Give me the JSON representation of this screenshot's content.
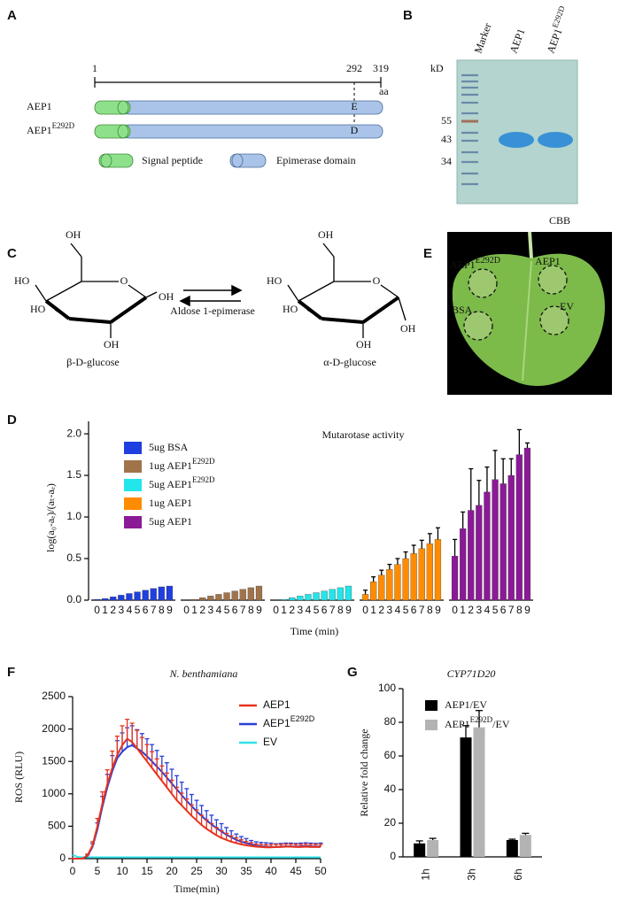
{
  "panel_labels": [
    "A",
    "B",
    "C",
    "D",
    "E",
    "F",
    "G"
  ],
  "panel_a": {
    "scale_start": "1",
    "scale_mark": "292",
    "scale_end": "319",
    "unit": "aa",
    "rows": [
      {
        "name": "AEP1",
        "residue": "E"
      },
      {
        "name": "AEP1",
        "superscript": "E292D",
        "residue": "D"
      }
    ],
    "legend": [
      "Signal peptide",
      "Epimerase domain"
    ]
  },
  "panel_b": {
    "lanes": [
      {
        "name": "Marker"
      },
      {
        "name": "AEP1"
      },
      {
        "name": "AEP1",
        "superscript": "E292D"
      }
    ],
    "unit": "kD",
    "markers": [
      "55",
      "43",
      "34"
    ],
    "stain": "CBB"
  },
  "panel_c": {
    "left": "β-D-glucose",
    "right": "α-D-glucose",
    "enzyme": "Aldose 1-epimerase",
    "hydroxyl": "OH",
    "hydroxyl_left": "HO",
    "ring_oxygen": "O"
  },
  "panel_e": {
    "spots": [
      {
        "name": "AEP1",
        "superscript": "E292D"
      },
      {
        "name": "AEP1"
      },
      {
        "name": "BSA"
      },
      {
        "name": "EV"
      }
    ]
  },
  "chart_data": [
    {
      "type": "bar",
      "title": "Mutarotase activity",
      "x_label": "Time (min)",
      "y_label": "log(a₀-aₑ)/(aₜ-aₑ)",
      "categories": [
        "0",
        "1",
        "2",
        "3",
        "4",
        "5",
        "6",
        "7",
        "8",
        "9"
      ],
      "ylim": [
        0,
        2.15
      ],
      "yticks": [
        {
          "value": 0,
          "label": "0.0"
        },
        {
          "value": 0.5,
          "label": "0.5"
        },
        {
          "value": 1,
          "label": "1.0"
        },
        {
          "value": 1.5,
          "label": "1.5"
        },
        {
          "value": 2,
          "label": "2.0"
        }
      ],
      "series": [
        {
          "name": "5ug BSA",
          "color": "#1f3fe0",
          "values": [
            0.01,
            0.02,
            0.04,
            0.06,
            0.08,
            0.1,
            0.12,
            0.14,
            0.16,
            0.17
          ]
        },
        {
          "name": "1ug AEP1",
          "superscript": "E292D",
          "color": "#a0734a",
          "values": [
            0,
            0.01,
            0.03,
            0.05,
            0.07,
            0.09,
            0.11,
            0.13,
            0.15,
            0.17
          ]
        },
        {
          "name": "5ug AEP1",
          "superscript": "E292D",
          "color": "#22e6ea",
          "values": [
            0,
            0.01,
            0.03,
            0.05,
            0.07,
            0.09,
            0.11,
            0.13,
            0.15,
            0.17
          ]
        },
        {
          "name": "1ug AEP1",
          "color": "#ff8c00",
          "values": [
            0.07,
            0.22,
            0.3,
            0.37,
            0.43,
            0.5,
            0.56,
            0.62,
            0.68,
            0.73
          ],
          "errors": [
            0.05,
            0.06,
            0.06,
            0.06,
            0.07,
            0.08,
            0.1,
            0.1,
            0.12,
            0.14
          ]
        },
        {
          "name": "5ug AEP1",
          "color": "#8b1a96",
          "values": [
            0.53,
            0.86,
            1.08,
            1.14,
            1.3,
            1.45,
            1.4,
            1.5,
            1.75,
            1.83
          ],
          "errors": [
            0.2,
            0.2,
            0.5,
            0.3,
            0.3,
            0.35,
            0.3,
            0.2,
            0.3,
            0.06
          ]
        }
      ]
    },
    {
      "type": "line",
      "title": "N. benthamiana",
      "x_label": "Time(min)",
      "y_label": "ROS (RLU)",
      "x": [
        0,
        1,
        2,
        3,
        4,
        5,
        6,
        7,
        8,
        9,
        10,
        11,
        12,
        13,
        14,
        15,
        16,
        17,
        18,
        19,
        20,
        21,
        22,
        23,
        24,
        25,
        26,
        27,
        28,
        29,
        30,
        31,
        32,
        33,
        34,
        35,
        36,
        37,
        38,
        39,
        40,
        41,
        42,
        43,
        44,
        45,
        46,
        47,
        48,
        49,
        50
      ],
      "xlim": [
        0,
        50
      ],
      "xticks": [
        0,
        5,
        10,
        15,
        20,
        25,
        30,
        35,
        40,
        45,
        50
      ],
      "ylim": [
        0,
        2500
      ],
      "yticks": [
        0,
        500,
        1000,
        1500,
        2000,
        2500
      ],
      "series": [
        {
          "name": "AEP1",
          "color": "#e8321e",
          "values": [
            0,
            0,
            0,
            50,
            200,
            500,
            850,
            1150,
            1400,
            1600,
            1750,
            1850,
            1800,
            1700,
            1600,
            1500,
            1400,
            1300,
            1200,
            1100,
            1000,
            900,
            820,
            740,
            660,
            590,
            520,
            460,
            410,
            360,
            320,
            290,
            260,
            240,
            220,
            205,
            195,
            185,
            180,
            175,
            175,
            180,
            180,
            185,
            185,
            180,
            180,
            185,
            180,
            180,
            180
          ],
          "errors": [
            0,
            0,
            0,
            20,
            60,
            120,
            180,
            220,
            260,
            290,
            300,
            300,
            290,
            280,
            270,
            260,
            250,
            240,
            230,
            220,
            210,
            200,
            190,
            180,
            170,
            160,
            150,
            140,
            130,
            120,
            110,
            100,
            90,
            80,
            70,
            60,
            50,
            40,
            40,
            40,
            40,
            40,
            40,
            40,
            40,
            40,
            40,
            40,
            40,
            40,
            40
          ]
        },
        {
          "name": "AEP1",
          "superscript": "E292D",
          "color": "#2a3fd6",
          "values": [
            0,
            0,
            0,
            40,
            180,
            450,
            800,
            1100,
            1350,
            1550,
            1650,
            1720,
            1750,
            1700,
            1650,
            1580,
            1500,
            1420,
            1340,
            1250,
            1160,
            1070,
            980,
            890,
            810,
            730,
            660,
            590,
            530,
            470,
            420,
            370,
            330,
            290,
            260,
            240,
            220,
            200,
            190,
            185,
            180,
            180,
            185,
            190,
            190,
            185,
            190,
            195,
            190,
            185,
            190
          ],
          "errors": [
            0,
            0,
            0,
            20,
            50,
            100,
            160,
            200,
            240,
            270,
            290,
            300,
            300,
            290,
            280,
            270,
            260,
            250,
            240,
            230,
            220,
            210,
            200,
            190,
            180,
            170,
            160,
            150,
            140,
            130,
            120,
            110,
            100,
            90,
            80,
            70,
            60,
            60,
            60,
            60,
            60,
            50,
            50,
            50,
            50,
            50,
            50,
            50,
            50,
            50,
            50
          ]
        },
        {
          "name": "EV",
          "color": "#2ee0e8",
          "values": [
            60,
            25,
            20,
            20,
            20,
            20,
            20,
            20,
            20,
            20,
            20,
            20,
            20,
            20,
            20,
            20,
            20,
            20,
            20,
            20,
            20,
            20,
            20,
            20,
            20,
            20,
            20,
            20,
            20,
            20,
            20,
            20,
            20,
            20,
            20,
            20,
            20,
            20,
            20,
            20,
            20,
            20,
            20,
            20,
            20,
            20,
            20,
            20,
            20,
            20,
            20
          ]
        }
      ]
    },
    {
      "type": "bar",
      "title": "CYP71D20",
      "y_label": "Relative fold change",
      "categories": [
        "1h",
        "3h",
        "6h"
      ],
      "ylim": [
        0,
        100
      ],
      "yticks": [
        0,
        20,
        40,
        60,
        80,
        100
      ],
      "series": [
        {
          "name": "AEP1/EV",
          "color": "#000000",
          "values": [
            8,
            71,
            10
          ],
          "errors": [
            1.5,
            7,
            0.5
          ]
        },
        {
          "name": "AEP1",
          "superscript": "E292D",
          "suffix": "/EV",
          "color": "#b3b3b3",
          "values": [
            10,
            77,
            13
          ],
          "errors": [
            1,
            10,
            1
          ]
        }
      ]
    }
  ]
}
